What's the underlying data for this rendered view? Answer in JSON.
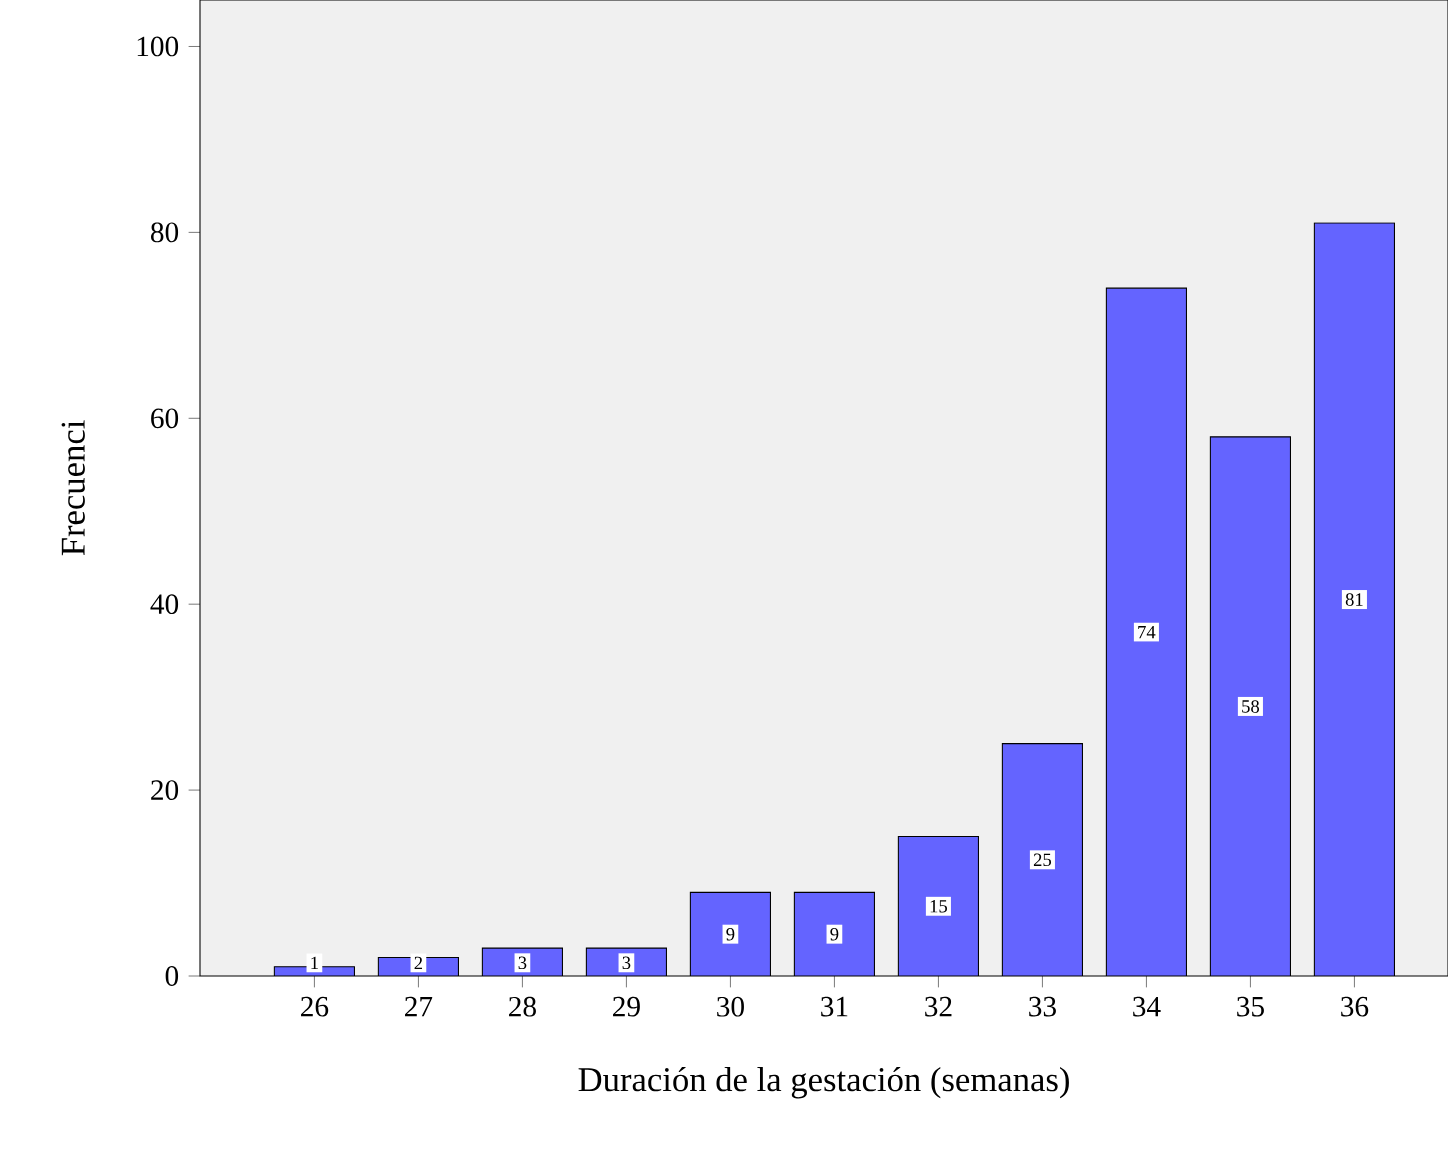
{
  "chart_data": {
    "type": "bar",
    "xlabel": "Duración de la gestación (semanas)",
    "ylabel": "Frecuenci",
    "categories": [
      "26",
      "27",
      "28",
      "29",
      "30",
      "31",
      "32",
      "33",
      "34",
      "35",
      "36"
    ],
    "values": [
      1,
      2,
      3,
      3,
      9,
      9,
      15,
      25,
      74,
      58,
      81
    ],
    "color": "#6464ff",
    "ylim": [
      0,
      105
    ],
    "yticks": [
      0,
      20,
      40,
      60,
      80,
      100
    ],
    "data_labels": true
  }
}
